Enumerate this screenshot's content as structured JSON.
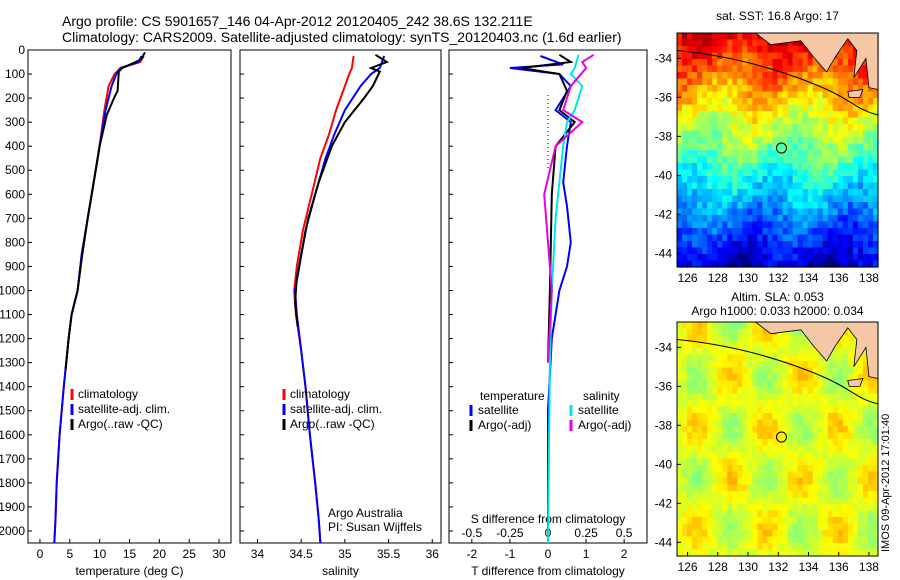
{
  "header": {
    "line1": "Argo profile: CS 5901657_146 04-Apr-2012 20120405_242 38.6S 132.211E",
    "line2": "Climatology: CARS2009. Satellite-adjusted climatology: synTS_20120403.nc (1.6d earlier)"
  },
  "stamp": "IMOS 09-Apr-2012 17:01:40",
  "colors": {
    "climatology": "#ff0000",
    "satellite": "#0000ff",
    "argo": "#000000",
    "satellite_salinity": "#00e5e5",
    "argo_salinity": "#e600e6"
  },
  "chart_data": [
    {
      "type": "line",
      "xlabel": "temperature (deg C)",
      "xticks": [
        "0",
        "5",
        "10",
        "15",
        "20",
        "25",
        "30"
      ],
      "xlim": [
        -2,
        32
      ],
      "ylim": [
        0,
        2050
      ],
      "yticks": [
        "0",
        "100",
        "200",
        "300",
        "400",
        "500",
        "600",
        "700",
        "800",
        "900",
        "1000",
        "1100",
        "1200",
        "1300",
        "1400",
        "1500",
        "1600",
        "1700",
        "1800",
        "1900",
        "2000"
      ],
      "legend": [
        "climatology",
        "satellite-adj. clim.",
        "Argo(..raw -QC)"
      ],
      "series": [
        {
          "name": "climatology",
          "x": [
            17.4,
            16.8,
            13.5,
            12.5,
            11.5,
            10.8,
            10.0,
            9.0,
            8.0,
            7.0,
            6.3,
            5.3,
            4.8,
            4.0,
            3.3,
            2.8,
            2.6,
            2.4
          ],
          "y": [
            25,
            50,
            75,
            100,
            150,
            250,
            400,
            550,
            700,
            850,
            1000,
            1100,
            1200,
            1400,
            1600,
            1800,
            1950,
            2050
          ]
        },
        {
          "name": "satellite-adj. clim.",
          "x": [
            17.0,
            16.5,
            13.5,
            12.8,
            12.0,
            11.0,
            10.0,
            9.0,
            8.0,
            7.0,
            6.3,
            5.3,
            4.8,
            4.0,
            3.3,
            2.8,
            2.6,
            2.4
          ],
          "y": [
            25,
            50,
            75,
            100,
            150,
            250,
            400,
            550,
            700,
            850,
            1000,
            1100,
            1200,
            1400,
            1600,
            1800,
            1950,
            2050
          ]
        },
        {
          "name": "Argo(..raw -QC)",
          "x": [
            17.6,
            16.9,
            13.8,
            13.2,
            13.0,
            12.4,
            11.2,
            10.0,
            9.0,
            8.0,
            7.1,
            6.3,
            5.3,
            4.8,
            4.3
          ],
          "y": [
            10,
            40,
            75,
            90,
            170,
            200,
            270,
            400,
            550,
            700,
            850,
            1000,
            1100,
            1200,
            1330
          ]
        }
      ]
    },
    {
      "type": "line",
      "xlabel": "salinity",
      "xticks": [
        "34",
        "34.5",
        "35",
        "35.5",
        "36"
      ],
      "xlim": [
        33.8,
        36.1
      ],
      "legend": [
        "climatology",
        "satellite-adj. clim.",
        "Argo(..raw -QC)"
      ],
      "annotations": [
        "Argo Australia",
        "PI: Susan Wijffels"
      ],
      "series": [
        {
          "name": "climatology",
          "x": [
            35.1,
            35.08,
            35.05,
            35.0,
            34.9,
            34.82,
            34.72,
            34.62,
            34.52,
            34.45,
            34.42,
            34.44,
            34.5,
            34.55,
            34.6,
            34.66,
            34.7,
            34.72
          ],
          "y": [
            25,
            75,
            100,
            150,
            250,
            350,
            450,
            600,
            750,
            900,
            1000,
            1100,
            1250,
            1400,
            1600,
            1800,
            1950,
            2050
          ]
        },
        {
          "name": "satellite-adj. clim.",
          "x": [
            35.45,
            35.4,
            35.3,
            35.18,
            35.0,
            34.88,
            34.78,
            34.66,
            34.55,
            34.48,
            34.43,
            34.45,
            34.5,
            34.55,
            34.6,
            34.66,
            34.7,
            34.72
          ],
          "y": [
            25,
            75,
            100,
            150,
            250,
            350,
            450,
            600,
            750,
            900,
            1000,
            1100,
            1250,
            1400,
            1600,
            1800,
            1950,
            2050
          ]
        },
        {
          "name": "Argo(..raw -QC)",
          "x": [
            35.35,
            35.48,
            35.3,
            35.4,
            35.32,
            35.22,
            35.0,
            34.85,
            34.7,
            34.58,
            34.5,
            34.45,
            34.43,
            34.46
          ],
          "y": [
            20,
            50,
            75,
            90,
            150,
            200,
            300,
            400,
            550,
            700,
            850,
            950,
            1050,
            1150
          ]
        }
      ]
    },
    {
      "type": "line",
      "xlabel": "T difference from climatology",
      "xlabel_top": "S difference from climatology",
      "xticks": [
        "-2",
        "-1",
        "0",
        "1",
        "2"
      ],
      "xticks_top": [
        "-0.5",
        "-0.25",
        "0",
        "0.25",
        "0.5"
      ],
      "xlim": [
        -2.6,
        2.6
      ],
      "legend_temperature_title": "temperature",
      "legend_salinity_title": "salinity",
      "legend": [
        "satellite",
        "Argo(-adj)",
        "satellite",
        "Argo(-adj)"
      ],
      "series": [
        {
          "name": "satellite",
          "x": [
            -0.2,
            0.4,
            -1.0,
            0.3,
            0.6,
            0.2,
            0.6,
            0.5,
            0.4,
            0.5,
            0.6,
            0.5,
            0.3,
            0.1,
            0.0,
            0.0
          ],
          "y": [
            25,
            60,
            75,
            100,
            150,
            250,
            300,
            400,
            550,
            650,
            800,
            900,
            1000,
            1200,
            1500,
            2050
          ]
        },
        {
          "name": "Argo(-adj)",
          "x": [
            0.3,
            0.6,
            -0.7,
            0.3,
            0.5,
            0.3,
            0.7,
            0.2,
            0.1,
            0.05,
            0.0
          ],
          "y": [
            20,
            50,
            75,
            100,
            170,
            250,
            300,
            400,
            600,
            1000,
            1300
          ]
        },
        {
          "name": "satellite",
          "x": [
            0.8,
            0.7,
            0.6,
            0.9,
            0.7,
            0.5,
            0.4,
            0.3,
            0.2,
            0.1,
            0.05,
            0.0
          ],
          "y": [
            20,
            75,
            100,
            150,
            250,
            300,
            400,
            550,
            700,
            1000,
            1300,
            2050
          ]
        },
        {
          "name": "Argo(-adj)",
          "x": [
            1.2,
            0.9,
            1.0,
            0.6,
            0.4,
            0.9,
            0.2,
            -0.1,
            0.1,
            0.0
          ],
          "y": [
            20,
            50,
            75,
            150,
            250,
            300,
            400,
            600,
            1000,
            1300
          ]
        }
      ]
    },
    {
      "type": "heatmap",
      "title": "sat. SST: 16.8 Argo: 17",
      "xticks": [
        "126",
        "128",
        "130",
        "132",
        "134",
        "136",
        "138"
      ],
      "yticks": [
        "-34",
        "-36",
        "-38",
        "-40",
        "-42",
        "-44"
      ],
      "marker": {
        "lon": 132.211,
        "lat": -38.6
      }
    },
    {
      "type": "heatmap",
      "title": "Altim. SLA: 0.053",
      "subtitle": "Argo h1000: 0.033 h2000: 0.034",
      "xticks": [
        "126",
        "128",
        "130",
        "132",
        "134",
        "136",
        "138"
      ],
      "yticks": [
        "-34",
        "-36",
        "-38",
        "-40",
        "-42",
        "-44"
      ],
      "marker": {
        "lon": 132.211,
        "lat": -38.6
      }
    }
  ]
}
